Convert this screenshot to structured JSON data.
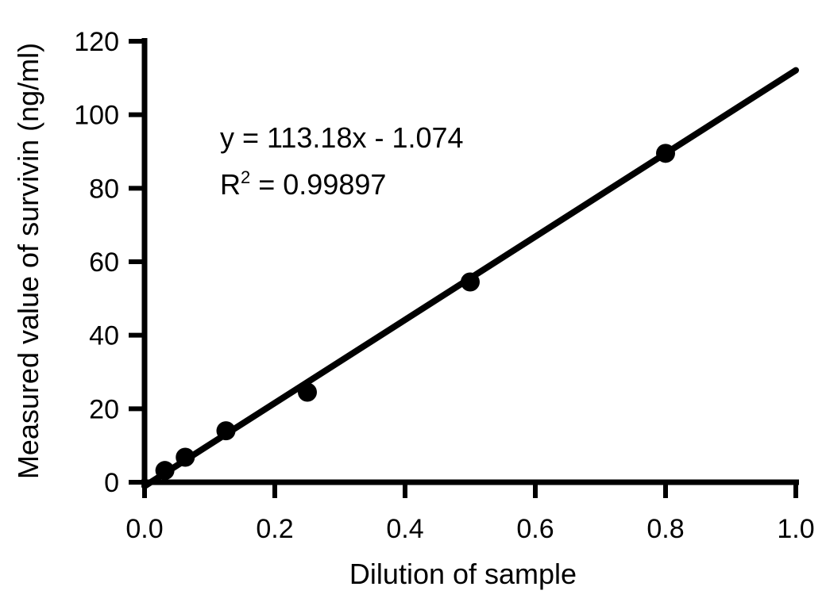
{
  "chart_data": {
    "type": "scatter",
    "title": "",
    "xlabel": "Dilution of sample",
    "ylabel": "Measured value of survivin (ng/ml)",
    "xlim": [
      0,
      1.0
    ],
    "ylim": [
      0,
      120
    ],
    "x_ticks": [
      "0.0",
      "0.2",
      "0.4",
      "0.6",
      "0.8",
      "1.0"
    ],
    "y_ticks": [
      "0",
      "20",
      "40",
      "60",
      "80",
      "100",
      "120"
    ],
    "grid": false,
    "series": [
      {
        "x": [
          0.03125,
          0.0625,
          0.125,
          0.25,
          0.5,
          0.8
        ],
        "y": [
          3.2,
          6.8,
          14.0,
          24.5,
          54.5,
          89.5
        ]
      }
    ],
    "fit_line": {
      "slope": 113.18,
      "intercept": -1.074,
      "x_range": [
        0.0,
        1.0
      ]
    },
    "annotations": {
      "equation": "y = 113.18x - 1.074",
      "r2_prefix": "R",
      "r2_sup": "2",
      "r2_value": " = 0.99897"
    },
    "colors": {
      "axis": "#000000",
      "marker": "#000000",
      "line": "#000000"
    }
  }
}
